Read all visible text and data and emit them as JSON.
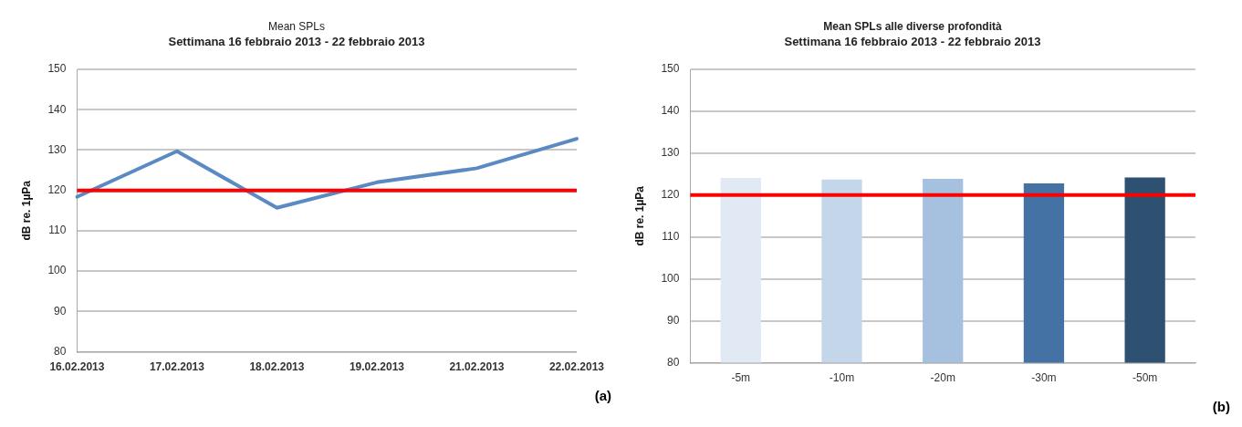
{
  "chart_data": [
    {
      "type": "line",
      "title": "Mean SPLs",
      "subtitle": "Settimana 16 febbraio 2013 - 22 febbraio 2013",
      "ylabel": "dB re. 1µPa",
      "categories": [
        "16.02.2013",
        "17.02.2013",
        "18.02.2013",
        "19.02.2013",
        "21.02.2013",
        "22.02.2013"
      ],
      "series": [
        {
          "color": "#5b8ac2",
          "values": [
            118.4,
            129.7,
            115.7,
            122,
            125.5,
            132.8
          ]
        }
      ],
      "ylim": [
        80,
        150
      ],
      "yticks": [
        80,
        90,
        100,
        110,
        120,
        130,
        140,
        150
      ],
      "grid": "y",
      "legend": false,
      "marker": "none",
      "line_style": "solid",
      "ref_lines": [
        {
          "axis": "y",
          "value": 120,
          "color": "#ff0000"
        }
      ],
      "annotations": [
        "(a)"
      ]
    },
    {
      "type": "bar",
      "title": "Mean SPLs alle diverse profondità",
      "subtitle": "Settimana 16 febbraio 2013 - 22 febbraio 2013",
      "ylabel": "dB re. 1µPa",
      "categories": [
        "-5m",
        "-10m",
        "-20m",
        "-30m",
        "-50m"
      ],
      "values": [
        124.1,
        123.7,
        123.9,
        122.8,
        124.2
      ],
      "colors": [
        "#e0e9f4",
        "#c4d6ea",
        "#a6c0df",
        "#4572a4",
        "#2e5171"
      ],
      "ylim": [
        80,
        150
      ],
      "yticks": [
        80,
        90,
        100,
        110,
        120,
        130,
        140,
        150
      ],
      "grid": "y",
      "legend": false,
      "ref_lines": [
        {
          "axis": "y",
          "value": 120,
          "color": "#ff0000"
        }
      ],
      "annotations": [
        "(b)"
      ]
    }
  ]
}
